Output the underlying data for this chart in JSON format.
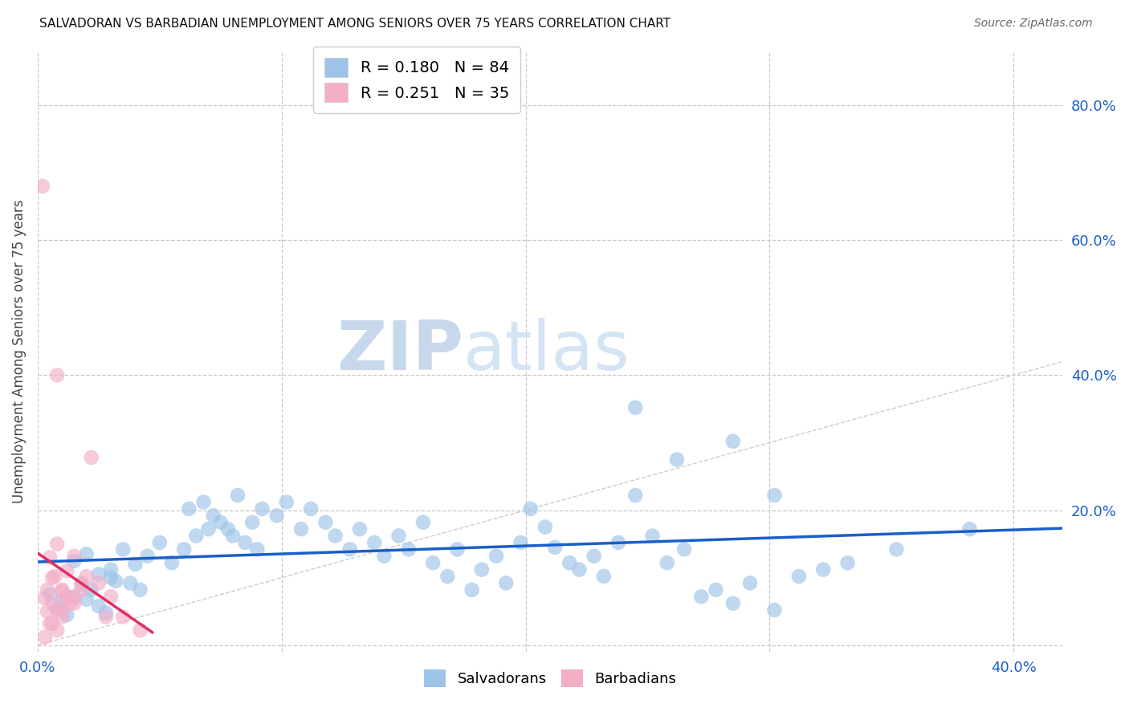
{
  "title": "SALVADORAN VS BARBADIAN UNEMPLOYMENT AMONG SENIORS OVER 75 YEARS CORRELATION CHART",
  "source": "Source: ZipAtlas.com",
  "ylabel": "Unemployment Among Seniors over 75 years",
  "xlim": [
    0.0,
    0.42
  ],
  "ylim": [
    -0.01,
    0.88
  ],
  "xticks": [
    0.0,
    0.1,
    0.2,
    0.3,
    0.4
  ],
  "yticks": [
    0.0,
    0.2,
    0.4,
    0.6,
    0.8
  ],
  "legend_label1": "Salvadorans",
  "legend_label2": "Barbadians",
  "R1": 0.18,
  "N1": 84,
  "R2": 0.251,
  "N2": 35,
  "color_salvadoran": "#9dc4e8",
  "color_barbadian": "#f4aec8",
  "color_line1": "#1a5fc8",
  "color_line2": "#e03060",
  "background_color": "#ffffff",
  "grid_color": "#c8c8c8",
  "salvadoran_x": [
    0.005,
    0.008,
    0.01,
    0.012,
    0.015,
    0.018,
    0.02,
    0.022,
    0.025,
    0.028,
    0.03,
    0.032,
    0.015,
    0.025,
    0.02,
    0.03,
    0.035,
    0.04,
    0.038,
    0.042,
    0.045,
    0.05,
    0.055,
    0.06,
    0.065,
    0.07,
    0.075,
    0.08,
    0.085,
    0.09,
    0.062,
    0.068,
    0.072,
    0.078,
    0.082,
    0.088,
    0.092,
    0.098,
    0.102,
    0.108,
    0.112,
    0.118,
    0.122,
    0.128,
    0.132,
    0.138,
    0.142,
    0.148,
    0.152,
    0.158,
    0.162,
    0.168,
    0.172,
    0.178,
    0.182,
    0.188,
    0.192,
    0.198,
    0.202,
    0.208,
    0.212,
    0.218,
    0.222,
    0.228,
    0.232,
    0.238,
    0.245,
    0.252,
    0.258,
    0.265,
    0.272,
    0.278,
    0.285,
    0.292,
    0.302,
    0.312,
    0.322,
    0.332,
    0.352,
    0.382,
    0.245,
    0.285,
    0.262,
    0.302
  ],
  "salvadoran_y": [
    0.075,
    0.055,
    0.065,
    0.045,
    0.07,
    0.09,
    0.068,
    0.082,
    0.058,
    0.048,
    0.1,
    0.095,
    0.125,
    0.105,
    0.135,
    0.112,
    0.142,
    0.12,
    0.092,
    0.082,
    0.132,
    0.152,
    0.122,
    0.142,
    0.162,
    0.172,
    0.182,
    0.162,
    0.152,
    0.142,
    0.202,
    0.212,
    0.192,
    0.172,
    0.222,
    0.182,
    0.202,
    0.192,
    0.212,
    0.172,
    0.202,
    0.182,
    0.162,
    0.142,
    0.172,
    0.152,
    0.132,
    0.162,
    0.142,
    0.182,
    0.122,
    0.102,
    0.142,
    0.082,
    0.112,
    0.132,
    0.092,
    0.152,
    0.202,
    0.175,
    0.145,
    0.122,
    0.112,
    0.132,
    0.102,
    0.152,
    0.222,
    0.162,
    0.122,
    0.142,
    0.072,
    0.082,
    0.062,
    0.092,
    0.052,
    0.102,
    0.112,
    0.122,
    0.142,
    0.172,
    0.352,
    0.302,
    0.275,
    0.222
  ],
  "barbadian_x": [
    0.002,
    0.004,
    0.003,
    0.006,
    0.008,
    0.01,
    0.012,
    0.005,
    0.008,
    0.015,
    0.018,
    0.01,
    0.012,
    0.006,
    0.02,
    0.015,
    0.005,
    0.008,
    0.012,
    0.015,
    0.004,
    0.007,
    0.01,
    0.013,
    0.018,
    0.022,
    0.025,
    0.03,
    0.035,
    0.008,
    0.003,
    0.006,
    0.01,
    0.028,
    0.042
  ],
  "barbadian_y": [
    0.68,
    0.05,
    0.07,
    0.1,
    0.4,
    0.08,
    0.11,
    0.13,
    0.15,
    0.072,
    0.092,
    0.052,
    0.072,
    0.032,
    0.102,
    0.132,
    0.032,
    0.052,
    0.072,
    0.062,
    0.082,
    0.102,
    0.042,
    0.062,
    0.082,
    0.278,
    0.092,
    0.072,
    0.042,
    0.022,
    0.012,
    0.062,
    0.082,
    0.042,
    0.022
  ]
}
